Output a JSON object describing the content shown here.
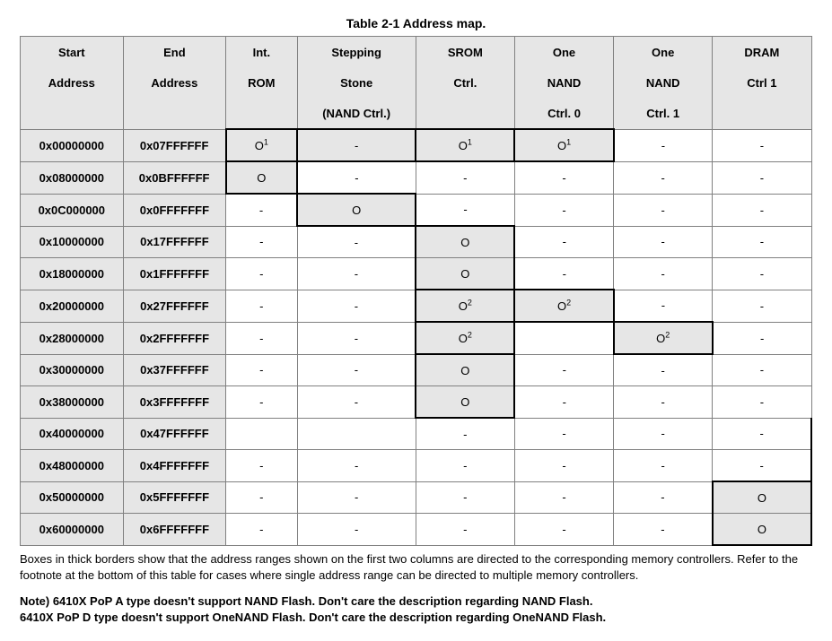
{
  "title": "Table 2-1 Address map.",
  "columns": [
    [
      "Start",
      "Address",
      ""
    ],
    [
      "End",
      "Address",
      ""
    ],
    [
      "Int.",
      "ROM",
      ""
    ],
    [
      "Stepping",
      "Stone",
      "(NAND Ctrl.)"
    ],
    [
      "SROM",
      "Ctrl.",
      ""
    ],
    [
      "One",
      "NAND",
      "Ctrl. 0"
    ],
    [
      "One",
      "NAND",
      "Ctrl. 1"
    ],
    [
      "DRAM",
      "Ctrl 1",
      ""
    ]
  ],
  "rows": [
    {
      "start": "0x00000000",
      "end": "0x07FFFFFF",
      "cells": [
        {
          "v": "O",
          "sup": "1",
          "hl": true,
          "thick": "tlrb"
        },
        {
          "v": "-",
          "hl": true,
          "thick": "trb"
        },
        {
          "v": "O",
          "sup": "1",
          "hl": true,
          "thick": "trb"
        },
        {
          "v": "O",
          "sup": "1",
          "hl": true,
          "thick": "trb"
        },
        {
          "v": "-"
        },
        {
          "v": "-"
        }
      ]
    },
    {
      "start": "0x08000000",
      "end": "0x0BFFFFFF",
      "cells": [
        {
          "v": "O",
          "hl": true,
          "thick": "lrb"
        },
        {
          "v": "-"
        },
        {
          "v": "-"
        },
        {
          "v": "-"
        },
        {
          "v": "-"
        },
        {
          "v": "-"
        }
      ]
    },
    {
      "start": "0x0C000000",
      "end": "0x0FFFFFFF",
      "cells": [
        {
          "v": "-"
        },
        {
          "v": "O",
          "hl": true,
          "thick": "tlrb"
        },
        {
          "v": "-"
        },
        {
          "v": "-"
        },
        {
          "v": "-"
        },
        {
          "v": "-"
        }
      ]
    },
    {
      "start": "0x10000000",
      "end": "0x17FFFFFF",
      "cells": [
        {
          "v": "-"
        },
        {
          "v": "-"
        },
        {
          "v": "O",
          "hl": true,
          "thick": "tlr"
        },
        {
          "v": "-"
        },
        {
          "v": "-"
        },
        {
          "v": "-"
        }
      ]
    },
    {
      "start": "0x18000000",
      "end": "0x1FFFFFFF",
      "cells": [
        {
          "v": "-"
        },
        {
          "v": "-"
        },
        {
          "v": "O",
          "hl": true,
          "thick": "lrb"
        },
        {
          "v": "-"
        },
        {
          "v": "-"
        },
        {
          "v": "-"
        }
      ]
    },
    {
      "start": "0x20000000",
      "end": "0x27FFFFFF",
      "cells": [
        {
          "v": "-"
        },
        {
          "v": "-"
        },
        {
          "v": "O",
          "sup": "2",
          "hl": true,
          "thick": "lrb"
        },
        {
          "v": "O",
          "sup": "2",
          "hl": true,
          "thick": "trb"
        },
        {
          "v": "-"
        },
        {
          "v": "-"
        }
      ]
    },
    {
      "start": "0x28000000",
      "end": "0x2FFFFFFF",
      "cells": [
        {
          "v": "-"
        },
        {
          "v": "-"
        },
        {
          "v": "O",
          "sup": "2",
          "hl": true,
          "thick": "lrb"
        },
        {
          "v": ""
        },
        {
          "v": "O",
          "sup": "2",
          "hl": true,
          "thick": "tlrb"
        },
        {
          "v": "-"
        }
      ]
    },
    {
      "start": "0x30000000",
      "end": "0x37FFFFFF",
      "cells": [
        {
          "v": "-"
        },
        {
          "v": "-"
        },
        {
          "v": "O",
          "hl": true,
          "thick": "lr"
        },
        {
          "v": "-"
        },
        {
          "v": "-"
        },
        {
          "v": "-"
        }
      ]
    },
    {
      "start": "0x38000000",
      "end": "0x3FFFFFFF",
      "cells": [
        {
          "v": "-"
        },
        {
          "v": "-"
        },
        {
          "v": "O",
          "hl": true,
          "thick": "lrb"
        },
        {
          "v": "-"
        },
        {
          "v": "-"
        },
        {
          "v": "-"
        }
      ]
    },
    {
      "start": "0x40000000",
      "end": "0x47FFFFFF",
      "cells": [
        {
          "v": ""
        },
        {
          "v": ""
        },
        {
          "v": "-"
        },
        {
          "v": "-"
        },
        {
          "v": "-"
        },
        {
          "v": "-",
          "thick": "r"
        }
      ]
    },
    {
      "start": "0x48000000",
      "end": "0x4FFFFFFF",
      "cells": [
        {
          "v": "-"
        },
        {
          "v": "-"
        },
        {
          "v": "-"
        },
        {
          "v": "-"
        },
        {
          "v": "-"
        },
        {
          "v": "-",
          "thick": "r"
        }
      ]
    },
    {
      "start": "0x50000000",
      "end": "0x5FFFFFFF",
      "cells": [
        {
          "v": "-"
        },
        {
          "v": "-"
        },
        {
          "v": "-"
        },
        {
          "v": "-"
        },
        {
          "v": "-"
        },
        {
          "v": "O",
          "hl": true,
          "thick": "tlr"
        }
      ]
    },
    {
      "start": "0x60000000",
      "end": "0x6FFFFFFF",
      "cells": [
        {
          "v": "-"
        },
        {
          "v": "-"
        },
        {
          "v": "-"
        },
        {
          "v": "-"
        },
        {
          "v": "-"
        },
        {
          "v": "O",
          "hl": true,
          "thick": "lrb"
        }
      ]
    }
  ],
  "caption": "Boxes in thick borders show that the address ranges shown on the first two columns are directed to the corresponding memory controllers. Refer to the footnote at the bottom of this table for cases where single address range can be directed to multiple memory controllers.",
  "note_line1": "Note) 6410X PoP A type doesn't support NAND Flash. Don't care the description regarding NAND Flash.",
  "note_line2": "6410X PoP D type doesn't support OneNAND Flash. Don't care the description regarding OneNAND Flash."
}
